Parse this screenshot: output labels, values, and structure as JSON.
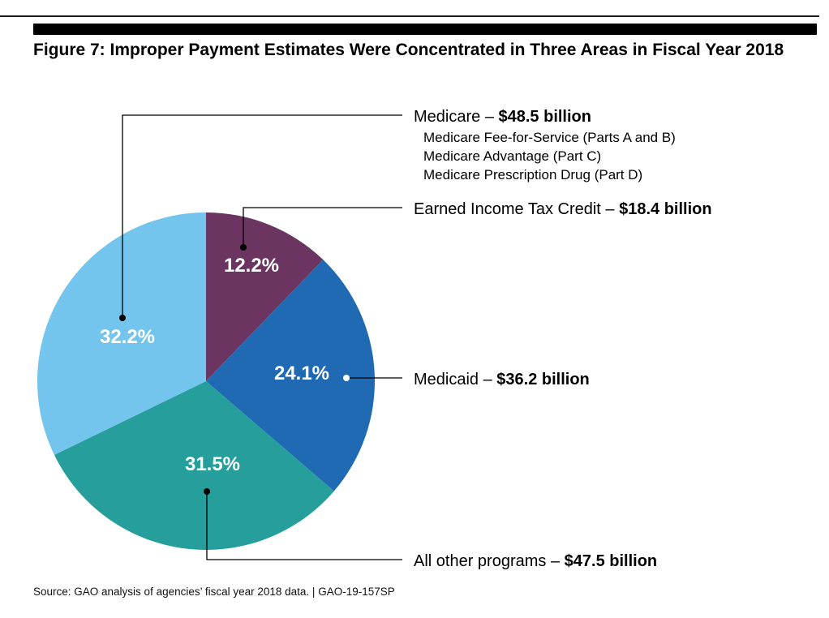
{
  "figure": {
    "title": "Figure 7: Improper Payment Estimates Were Concentrated in Three Areas in Fiscal Year 2018",
    "source": "Source: GAO analysis of agencies’ fiscal year 2018 data.  |  GAO-19-157SP"
  },
  "chart_data": {
    "type": "pie",
    "title": "Figure 7: Improper Payment Estimates Were Concentrated in Three Areas in Fiscal Year 2018",
    "slices": [
      {
        "key": "eitc",
        "label": "Earned Income Tax Credit",
        "amount": "$18.4 billion",
        "percent_label": "12.2%",
        "value": 12.2,
        "color": "#6b3461",
        "sub_items": []
      },
      {
        "key": "medicaid",
        "label": "Medicaid",
        "amount": "$36.2 billion",
        "percent_label": "24.1%",
        "value": 24.1,
        "color": "#1f6ab3",
        "sub_items": []
      },
      {
        "key": "other",
        "label": "All other programs",
        "amount": "$47.5 billion",
        "percent_label": "31.5%",
        "value": 31.5,
        "color": "#259e9c",
        "sub_items": []
      },
      {
        "key": "medicare",
        "label": "Medicare",
        "amount": "$48.5 billion",
        "percent_label": "32.2%",
        "value": 32.2,
        "color": "#74c5ee",
        "sub_items": [
          "Medicare Fee-for-Service (Parts A and B)",
          "Medicare Advantage (Part C)",
          "Medicare Prescription Drug (Part D)"
        ]
      }
    ],
    "label_separator": " – ",
    "start_angle": "12 o'clock",
    "direction": "clockwise",
    "legend": "callout-right"
  }
}
